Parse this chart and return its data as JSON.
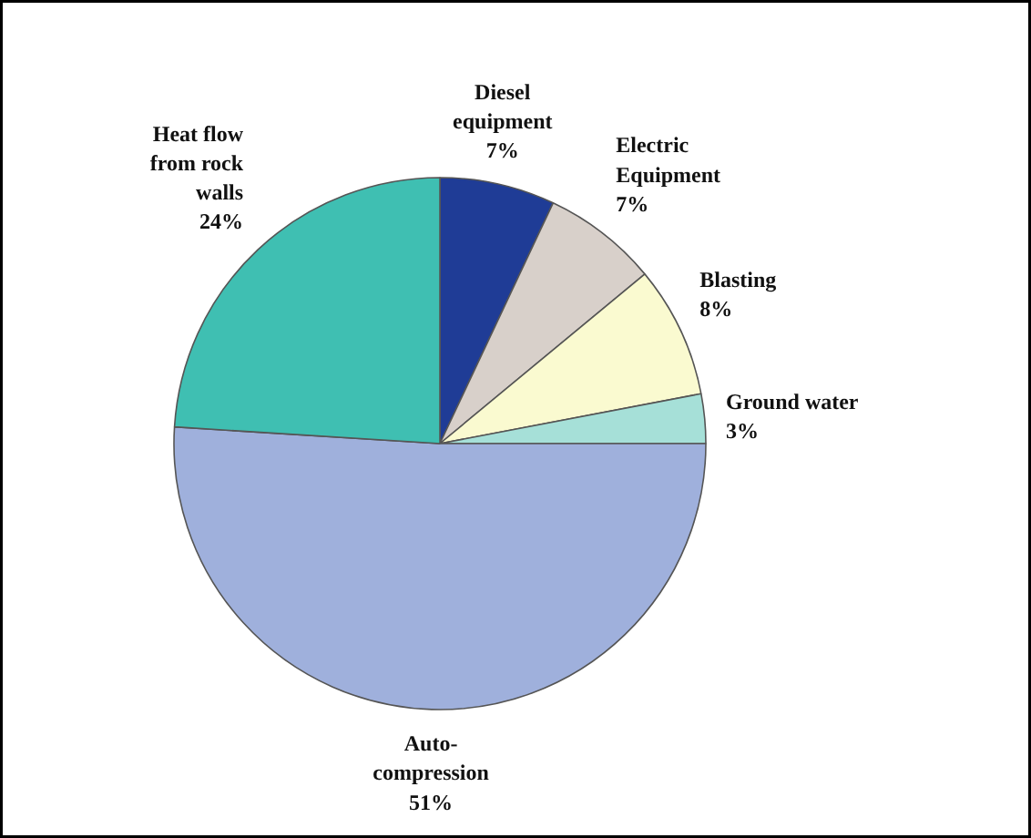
{
  "chart_data": {
    "type": "pie",
    "categories": [
      "Diesel\nequipment",
      "Electric\nEquipment",
      "Blasting",
      "Ground water",
      "Auto-\ncompression",
      "Heat flow\nfrom rock\nwalls"
    ],
    "values": [
      7,
      7,
      8,
      3,
      51,
      24
    ],
    "value_labels": [
      "7%",
      "7%",
      "8%",
      "3%",
      "51%",
      "24%"
    ],
    "colors": [
      "#1f3c96",
      "#d8d0ca",
      "#fafad0",
      "#a6e0d8",
      "#9fb0dc",
      "#3fbfb2"
    ]
  }
}
